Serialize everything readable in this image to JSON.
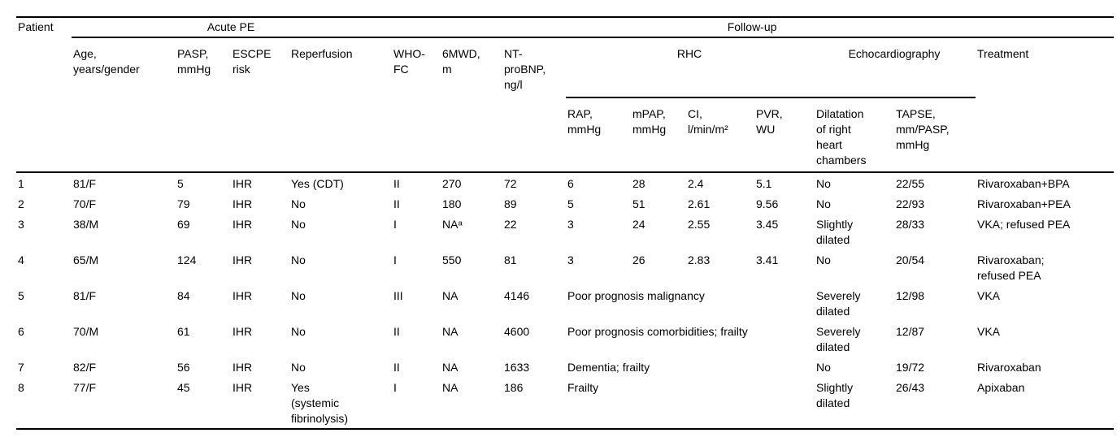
{
  "page": {
    "background_color": "#ffffff",
    "text_color": "#000000",
    "rule_color": "#000000"
  },
  "table": {
    "group_headers": {
      "acute_pe": "Acute PE",
      "follow_up": "Follow-up",
      "rhc": "RHC",
      "echocardiography": "Echocardiography"
    },
    "col_headers": {
      "patient": "Patient",
      "age": "Age,\nyears/gender",
      "pasp": "PASP,\nmmHg",
      "escpe_risk": "ESCPE\nrisk",
      "reperfusion": "Reperfusion",
      "who_fc": "WHO-\nFC",
      "six_mwd": "6MWD,\nm",
      "nt_probnp": "NT-\nproBNP,\nng/l",
      "rap": "RAP,\nmmHg",
      "mpap": "mPAP,\nmmHg",
      "ci": "CI,\nl/min/m²",
      "pvr": "PVR,\nWU",
      "dilatation": "Dilatation\nof right\nheart\nchambers",
      "tapse": "TAPSE,\nmm/PASP,\nmmHg",
      "treatment": "Treatment"
    },
    "rows": [
      {
        "cells": [
          {
            "t": "1"
          },
          {
            "t": "81/F"
          },
          {
            "t": "5"
          },
          {
            "t": "IHR"
          },
          {
            "t": "Yes (CDT)"
          },
          {
            "t": "II"
          },
          {
            "t": "270"
          },
          {
            "t": "72"
          },
          {
            "t": "6"
          },
          {
            "t": "28"
          },
          {
            "t": "2.4"
          },
          {
            "t": "5.1"
          },
          {
            "t": "No"
          },
          {
            "t": "22/55"
          },
          {
            "t": "Rivaroxaban+BPA"
          }
        ]
      },
      {
        "cells": [
          {
            "t": "2"
          },
          {
            "t": "70/F"
          },
          {
            "t": "79"
          },
          {
            "t": "IHR"
          },
          {
            "t": "No"
          },
          {
            "t": "II"
          },
          {
            "t": "180"
          },
          {
            "t": "89"
          },
          {
            "t": "5"
          },
          {
            "t": "51"
          },
          {
            "t": "2.61"
          },
          {
            "t": "9.56"
          },
          {
            "t": "No"
          },
          {
            "t": "22/93"
          },
          {
            "t": "Rivaroxaban+PEA"
          }
        ]
      },
      {
        "cells": [
          {
            "t": "3"
          },
          {
            "t": "38/M"
          },
          {
            "t": "69"
          },
          {
            "t": "IHR"
          },
          {
            "t": "No"
          },
          {
            "t": "I"
          },
          {
            "t": "NAᵃ"
          },
          {
            "t": "22"
          },
          {
            "t": "3"
          },
          {
            "t": "24"
          },
          {
            "t": "2.55"
          },
          {
            "t": "3.45"
          },
          {
            "t": "Slightly\ndilated"
          },
          {
            "t": "28/33"
          },
          {
            "t": "VKA; refused PEA"
          }
        ]
      },
      {
        "cells": [
          {
            "t": "4"
          },
          {
            "t": "65/M"
          },
          {
            "t": "124"
          },
          {
            "t": "IHR"
          },
          {
            "t": "No"
          },
          {
            "t": "I"
          },
          {
            "t": "550"
          },
          {
            "t": "81"
          },
          {
            "t": "3"
          },
          {
            "t": "26"
          },
          {
            "t": "2.83"
          },
          {
            "t": "3.41"
          },
          {
            "t": "No"
          },
          {
            "t": "20/54"
          },
          {
            "t": "Rivaroxaban;\nrefused PEA"
          }
        ]
      },
      {
        "cells": [
          {
            "t": "5"
          },
          {
            "t": "81/F"
          },
          {
            "t": "84"
          },
          {
            "t": "IHR"
          },
          {
            "t": "No"
          },
          {
            "t": "III"
          },
          {
            "t": "NA"
          },
          {
            "t": "4146"
          },
          {
            "t": "Poor prognosis malignancy",
            "colspan": 4
          },
          {
            "t": "Severely\ndilated"
          },
          {
            "t": "12/98"
          },
          {
            "t": "VKA"
          }
        ]
      },
      {
        "cells": [
          {
            "t": "6"
          },
          {
            "t": "70/M"
          },
          {
            "t": "61"
          },
          {
            "t": "IHR"
          },
          {
            "t": "No"
          },
          {
            "t": "II"
          },
          {
            "t": "NA"
          },
          {
            "t": "4600"
          },
          {
            "t": "Poor prognosis comorbidities; frailty",
            "colspan": 4
          },
          {
            "t": "Severely\ndilated"
          },
          {
            "t": "12/87"
          },
          {
            "t": "VKA"
          }
        ]
      },
      {
        "cells": [
          {
            "t": "7"
          },
          {
            "t": "82/F"
          },
          {
            "t": "56"
          },
          {
            "t": "IHR"
          },
          {
            "t": "No"
          },
          {
            "t": "II"
          },
          {
            "t": "NA"
          },
          {
            "t": "1633"
          },
          {
            "t": "Dementia; frailty",
            "colspan": 4
          },
          {
            "t": "No"
          },
          {
            "t": "19/72"
          },
          {
            "t": "Rivaroxaban"
          }
        ]
      },
      {
        "cells": [
          {
            "t": "8"
          },
          {
            "t": "77/F"
          },
          {
            "t": "45"
          },
          {
            "t": "IHR"
          },
          {
            "t": "Yes\n(systemic\nfibrinolysis)"
          },
          {
            "t": "I"
          },
          {
            "t": "NA"
          },
          {
            "t": "186"
          },
          {
            "t": "Frailty",
            "colspan": 4
          },
          {
            "t": "Slightly\ndilated"
          },
          {
            "t": "26/43"
          },
          {
            "t": "Apixaban"
          }
        ]
      }
    ]
  }
}
